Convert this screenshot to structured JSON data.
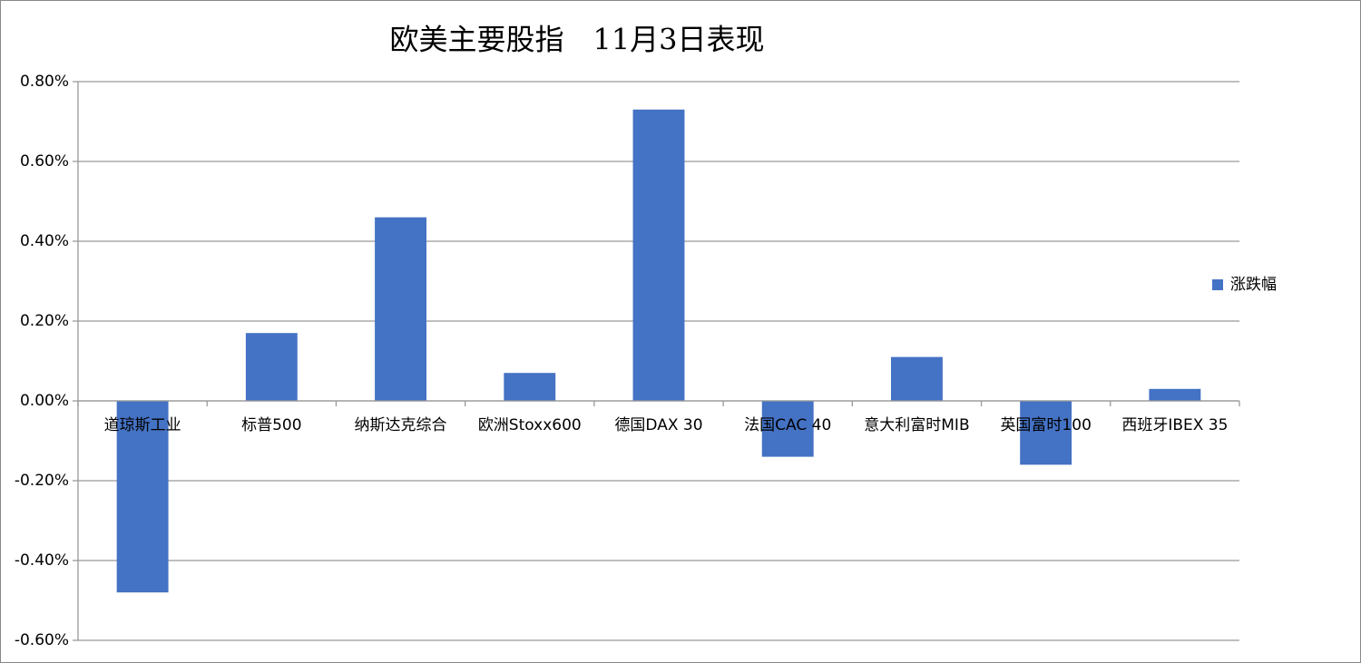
{
  "chart_data": {
    "type": "bar",
    "title": "欧美主要股指　11月3日表现",
    "categories": [
      "道琼斯工业",
      "标普500",
      "纳斯达克综合",
      "欧洲Stoxx600",
      "德国DAX 30",
      "法国CAC 40",
      "意大利富时MIB",
      "英国富时100",
      "西班牙IBEX 35"
    ],
    "series": [
      {
        "name": "涨跌幅",
        "color": "#4472c4",
        "values": [
          -0.48,
          0.17,
          0.46,
          0.07,
          0.73,
          -0.14,
          0.11,
          -0.16,
          0.03
        ]
      }
    ],
    "ylim": [
      -0.6,
      0.8
    ],
    "yticks": [
      {
        "value": -0.6,
        "label": "-0.60%"
      },
      {
        "value": -0.4,
        "label": "-0.40%"
      },
      {
        "value": -0.2,
        "label": "-0.20%"
      },
      {
        "value": 0,
        "label": "0.00%"
      },
      {
        "value": 0.2,
        "label": "0.20%"
      },
      {
        "value": 0.4,
        "label": "0.40%"
      },
      {
        "value": 0.6,
        "label": "0.60%"
      },
      {
        "value": 0.8,
        "label": "0.80%"
      }
    ],
    "grid": true,
    "legend": "right"
  }
}
